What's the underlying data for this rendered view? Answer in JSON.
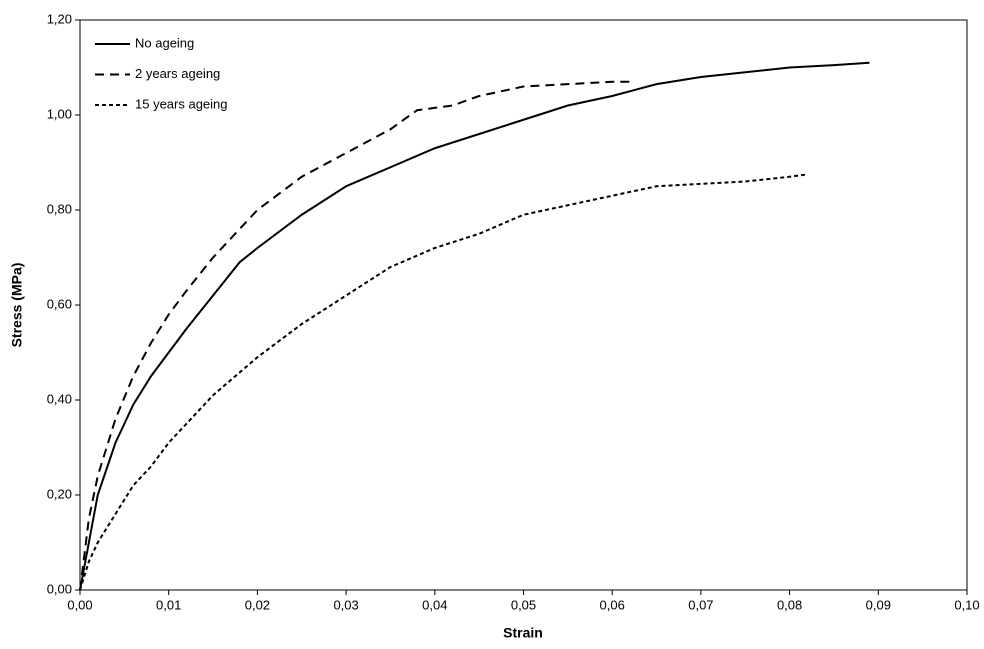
{
  "chart_data": {
    "type": "line",
    "xlabel": "Strain",
    "ylabel": "Stress (MPa)",
    "xlim": [
      0,
      0.1
    ],
    "ylim": [
      0,
      1.2
    ],
    "xticks": [
      {
        "value": 0,
        "label": "0,00"
      },
      {
        "value": 0.01,
        "label": "0,01"
      },
      {
        "value": 0.02,
        "label": "0,02"
      },
      {
        "value": 0.03,
        "label": "0,03"
      },
      {
        "value": 0.04,
        "label": "0,04"
      },
      {
        "value": 0.05,
        "label": "0,05"
      },
      {
        "value": 0.06,
        "label": "0,06"
      },
      {
        "value": 0.07,
        "label": "0,07"
      },
      {
        "value": 0.08,
        "label": "0,08"
      },
      {
        "value": 0.09,
        "label": "0,09"
      },
      {
        "value": 0.1,
        "label": "0,10"
      }
    ],
    "yticks": [
      {
        "value": 0,
        "label": "0,00"
      },
      {
        "value": 0.2,
        "label": "0,20"
      },
      {
        "value": 0.4,
        "label": "0,40"
      },
      {
        "value": 0.6,
        "label": "0,60"
      },
      {
        "value": 0.8,
        "label": "0,80"
      },
      {
        "value": 1,
        "label": "1,00"
      },
      {
        "value": 1.2,
        "label": "1,20"
      }
    ],
    "grid": false,
    "legend": "top-left",
    "series": [
      {
        "name": "No ageing",
        "color": "#000000",
        "dash": "solid",
        "x": [
          0,
          0.001,
          0.002,
          0.004,
          0.006,
          0.008,
          0.01,
          0.012,
          0.015,
          0.018,
          0.02,
          0.025,
          0.03,
          0.035,
          0.04,
          0.045,
          0.05,
          0.055,
          0.06,
          0.065,
          0.07,
          0.075,
          0.08,
          0.085,
          0.089
        ],
        "values": [
          0,
          0.1,
          0.2,
          0.31,
          0.39,
          0.45,
          0.5,
          0.55,
          0.62,
          0.69,
          0.72,
          0.79,
          0.85,
          0.89,
          0.93,
          0.96,
          0.99,
          1.02,
          1.04,
          1.065,
          1.08,
          1.09,
          1.1,
          1.105,
          1.11
        ]
      },
      {
        "name": "2 years ageing",
        "color": "#000000",
        "dash": "dashed",
        "x": [
          0,
          0.001,
          0.002,
          0.004,
          0.006,
          0.008,
          0.01,
          0.012,
          0.015,
          0.018,
          0.02,
          0.025,
          0.03,
          0.035,
          0.038,
          0.042,
          0.045,
          0.05,
          0.055,
          0.06,
          0.062
        ],
        "values": [
          0,
          0.15,
          0.24,
          0.36,
          0.45,
          0.52,
          0.58,
          0.63,
          0.7,
          0.76,
          0.8,
          0.87,
          0.92,
          0.97,
          1.01,
          1.02,
          1.04,
          1.06,
          1.065,
          1.07,
          1.07
        ]
      },
      {
        "name": "15 years ageing",
        "color": "#000000",
        "dash": "dotted",
        "x": [
          0,
          0.001,
          0.002,
          0.004,
          0.006,
          0.008,
          0.01,
          0.015,
          0.02,
          0.025,
          0.03,
          0.035,
          0.04,
          0.045,
          0.05,
          0.055,
          0.06,
          0.065,
          0.07,
          0.075,
          0.08,
          0.082
        ],
        "values": [
          0,
          0.06,
          0.1,
          0.16,
          0.22,
          0.26,
          0.31,
          0.41,
          0.49,
          0.56,
          0.62,
          0.68,
          0.72,
          0.75,
          0.79,
          0.81,
          0.83,
          0.85,
          0.855,
          0.86,
          0.87,
          0.875
        ]
      }
    ]
  }
}
